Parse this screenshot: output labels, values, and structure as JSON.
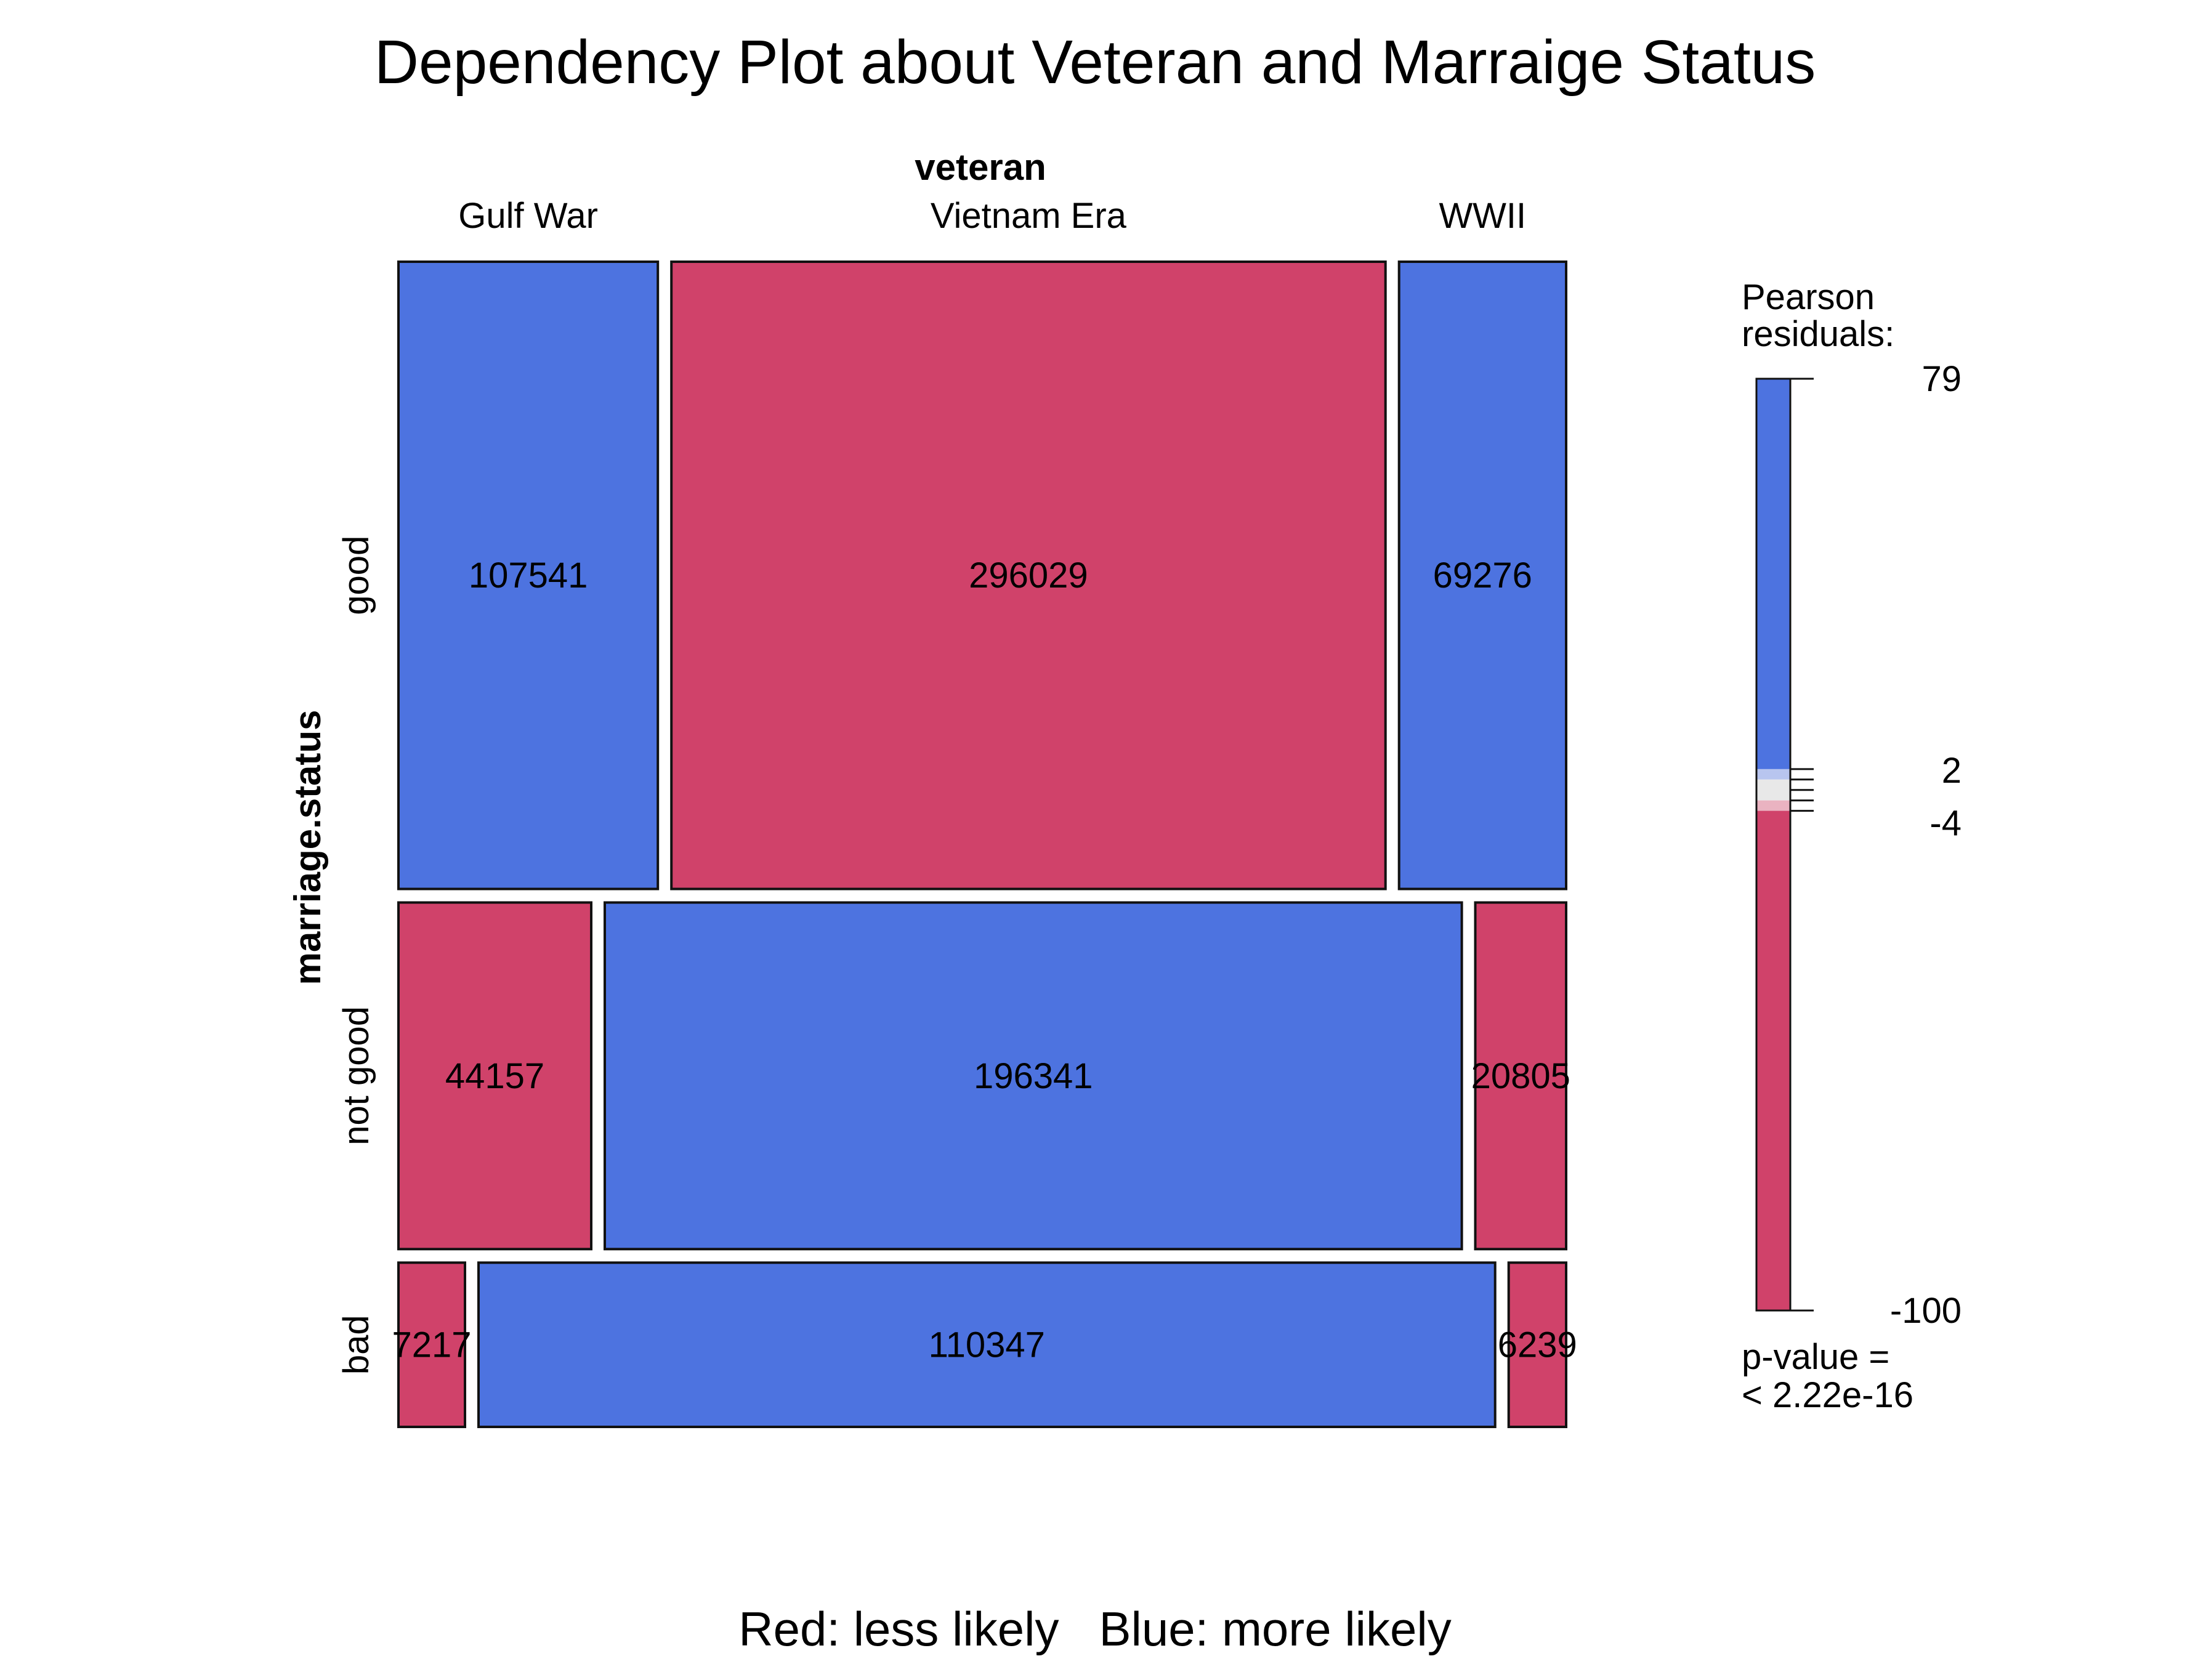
{
  "chart_data": {
    "type": "mosaic",
    "title": "Dependency Plot about Veteran and Marraige Status",
    "column_variable": "veteran",
    "row_variable": "marriage.status",
    "columns": [
      "Gulf War",
      "Vietnam Era",
      "WWII"
    ],
    "rows": [
      "good",
      "not good",
      "bad"
    ],
    "counts": [
      [
        107541,
        296029,
        69276
      ],
      [
        44157,
        196341,
        20805
      ],
      [
        7217,
        110347,
        6239
      ]
    ],
    "cell_fill": [
      [
        "more",
        "less",
        "more"
      ],
      [
        "less",
        "more",
        "less"
      ],
      [
        "less",
        "more",
        "less"
      ]
    ],
    "colors": {
      "more": "#4d73e0",
      "less": "#d0426a",
      "neutral": "#e8e8e8",
      "light_more": "#b8c5ef",
      "light_less": "#eab3c1"
    },
    "legend": {
      "title_lines": [
        "Pearson",
        "residuals:"
      ],
      "range": [
        -100,
        79
      ],
      "ticks": [
        "79",
        "2",
        "-4",
        "-100"
      ],
      "tick_values": [
        79,
        2,
        -4,
        -100
      ],
      "bands": [
        {
          "from": 79,
          "to": 4,
          "color": "more"
        },
        {
          "from": 4,
          "to": 2,
          "color": "light_more"
        },
        {
          "from": 2,
          "to": -2,
          "color": "neutral"
        },
        {
          "from": -2,
          "to": -4,
          "color": "light_less"
        },
        {
          "from": -4,
          "to": -100,
          "color": "less"
        }
      ],
      "pvalue_lines": [
        "p-value =",
        "< 2.22e-16"
      ]
    },
    "caption": "Red: less likely   Blue: more likely"
  }
}
